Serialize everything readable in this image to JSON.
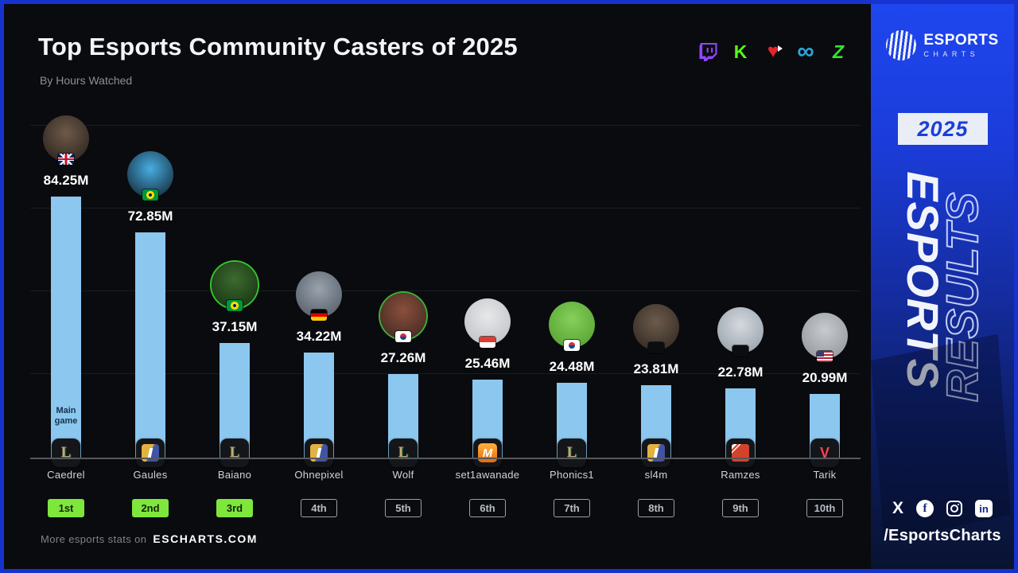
{
  "title": "Top Esports Community Casters of 2025",
  "subtitle": "By Hours Watched",
  "platforms": [
    {
      "name": "twitch",
      "color": "#9146FF"
    },
    {
      "name": "kick",
      "color": "#53FC18"
    },
    {
      "name": "heart",
      "color": "#E8242A"
    },
    {
      "name": "infinity",
      "color": "#2AA7DE"
    },
    {
      "name": "chzzk",
      "color": "#35E335"
    }
  ],
  "chart_data": {
    "type": "bar",
    "title": "Top Esports Community Casters of 2025",
    "subtitle": "By Hours Watched",
    "unit": "hours watched (millions)",
    "categories": [
      "Caedrel",
      "Gaules",
      "Baiano",
      "Ohnepixel",
      "Wolf",
      "set1awanade",
      "Phonics1",
      "sl4m",
      "Ramzes",
      "Tarik"
    ],
    "values": [
      84.25,
      72.85,
      37.15,
      34.22,
      27.26,
      25.46,
      24.48,
      23.81,
      22.78,
      20.99
    ],
    "labels": [
      "84.25M",
      "72.85M",
      "37.15M",
      "34.22M",
      "27.26M",
      "25.46M",
      "24.48M",
      "23.81M",
      "22.78M",
      "20.99M"
    ],
    "ranks": [
      "1st",
      "2nd",
      "3rd",
      "4th",
      "5th",
      "6th",
      "7th",
      "8th",
      "9th",
      "10th"
    ],
    "top_rank_count": 3,
    "countries": [
      "gb",
      "br",
      "br",
      "de",
      "kr",
      "id",
      "kr",
      "none",
      "none",
      "us"
    ],
    "games": [
      "lol",
      "cs2",
      "lol",
      "cs2",
      "lol",
      "mlbb",
      "lol",
      "cs2",
      "dota2",
      "valorant"
    ],
    "main_game_label": "Main game",
    "bar_color": "#8CC7F0",
    "rank_highlight_color": "#7FE73C",
    "grid": true,
    "legend": false,
    "avatars": [
      {
        "c1": "#6E5A4A",
        "c2": "#241D18",
        "ring": ""
      },
      {
        "c1": "#47AEE2",
        "c2": "#0F1A26",
        "ring": ""
      },
      {
        "c1": "#3C6B2F",
        "c2": "#132B10",
        "ring": "#35C52C"
      },
      {
        "c1": "#9AA3AD",
        "c2": "#4C555F",
        "ring": ""
      },
      {
        "c1": "#8A4F3D",
        "c2": "#3A241D",
        "ring": "#3FAE3A"
      },
      {
        "c1": "#E8E8EA",
        "c2": "#B9BCC2",
        "ring": ""
      },
      {
        "c1": "#86D05A",
        "c2": "#4F9C2D",
        "ring": ""
      },
      {
        "c1": "#6D5B4C",
        "c2": "#2B241E",
        "ring": ""
      },
      {
        "c1": "#D5D9DD",
        "c2": "#8F9AA5",
        "ring": ""
      },
      {
        "c1": "#C7CBD0",
        "c2": "#8C9196",
        "ring": ""
      }
    ]
  },
  "footer": {
    "text": "More esports stats on",
    "site": "ESCHARTS.COM"
  },
  "sidebar": {
    "brand_top": "ESPORTS",
    "brand_bottom": "CHARTS",
    "year": "2025",
    "vertical_solid": "ESPORTS",
    "vertical_outline": "RESULTS",
    "socials": [
      "x",
      "facebook",
      "instagram",
      "linkedin"
    ],
    "handle": "/EsportsCharts",
    "accent": "#1C3ED8"
  },
  "colors": {
    "background": "#0A0B0E",
    "border_blue": "#1633CF",
    "bar": "#8CC7F0",
    "rank_green": "#7FE73C",
    "sidebar_top": "#1E46EE",
    "sidebar_bottom": "#091330"
  }
}
